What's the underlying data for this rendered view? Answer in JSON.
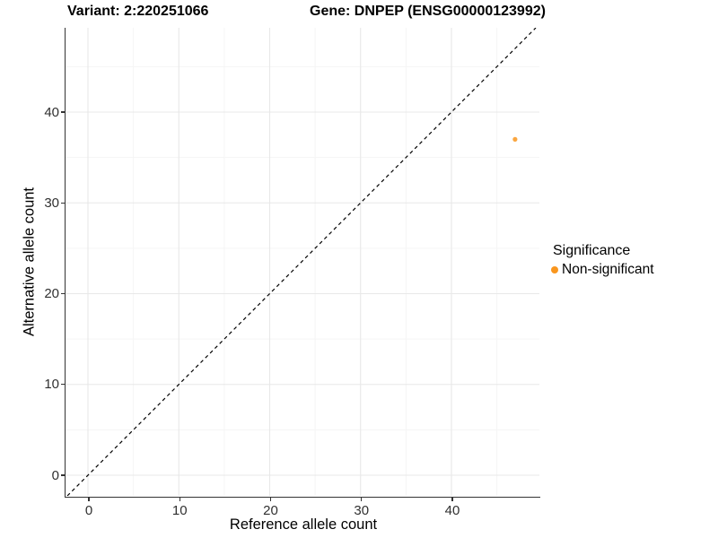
{
  "chart_data": {
    "type": "scatter",
    "titles": {
      "variant": "Variant: 2:220251066",
      "gene": "Gene: DNPEP (ENSG00000123992)"
    },
    "xlabel": "Reference allele count",
    "ylabel": "Alternative allele count",
    "x_ticks": [
      0,
      10,
      20,
      30,
      40
    ],
    "y_ticks": [
      0,
      10,
      20,
      30,
      40
    ],
    "x_minor_ticks": [
      5,
      15,
      25,
      35,
      45
    ],
    "y_minor_ticks": [
      5,
      15,
      25,
      35,
      45
    ],
    "xlim": [
      -2.6,
      49.5
    ],
    "ylim": [
      -2.3,
      49.3
    ],
    "grid": "major+minor",
    "reference_line": {
      "type": "identity",
      "slope": 1,
      "intercept": 0,
      "style": "dashed",
      "color": "#000000"
    },
    "series": [
      {
        "name": "Non-significant",
        "color": "#F9961E",
        "points": [
          [
            47,
            37
          ]
        ]
      }
    ],
    "legend": {
      "title": "Significance",
      "position": "right",
      "items": [
        {
          "label": "Non-significant",
          "color": "#F9961E"
        }
      ]
    },
    "colors": {
      "point_orange": "#F9961E",
      "grid_major": "#E8E8E8",
      "grid_minor": "#F5F5F5",
      "axis_line": "#333333"
    }
  }
}
